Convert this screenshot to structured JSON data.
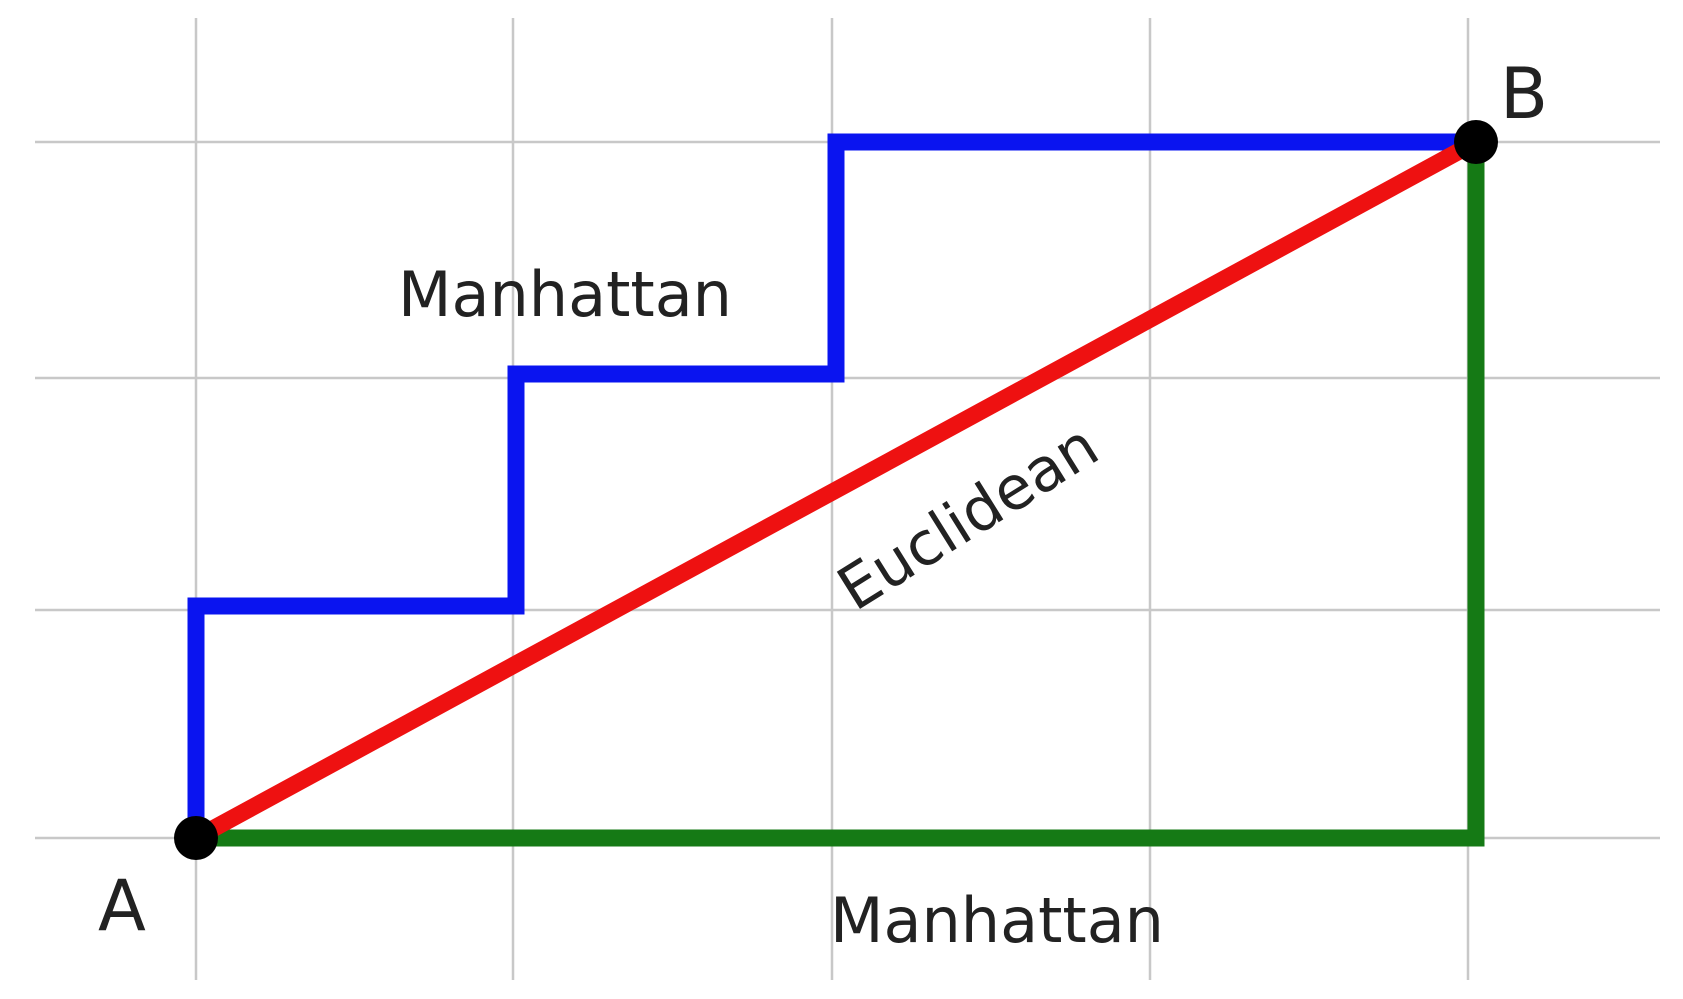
{
  "labels": {
    "point_a": "A",
    "point_b": "B",
    "manhattan_top": "Manhattan",
    "manhattan_bottom": "Manhattan",
    "euclidean": "Euclidean"
  },
  "points": {
    "A": [
      0,
      0
    ],
    "B": [
      4,
      3
    ]
  },
  "paths": {
    "manhattan_staircase": [
      [
        0,
        0
      ],
      [
        0,
        1
      ],
      [
        1,
        1
      ],
      [
        1,
        2
      ],
      [
        2,
        2
      ],
      [
        2,
        3
      ],
      [
        4,
        3
      ]
    ],
    "manhattan_corner": [
      [
        0,
        0
      ],
      [
        4,
        0
      ],
      [
        4,
        3
      ]
    ],
    "euclidean": [
      [
        0,
        0
      ],
      [
        4,
        3
      ]
    ]
  },
  "colors": {
    "manhattan_staircase": "#0a14f0",
    "manhattan_corner": "#157a15",
    "euclidean": "#ee1111",
    "grid": "#c8c8c8",
    "point": "#000000"
  }
}
